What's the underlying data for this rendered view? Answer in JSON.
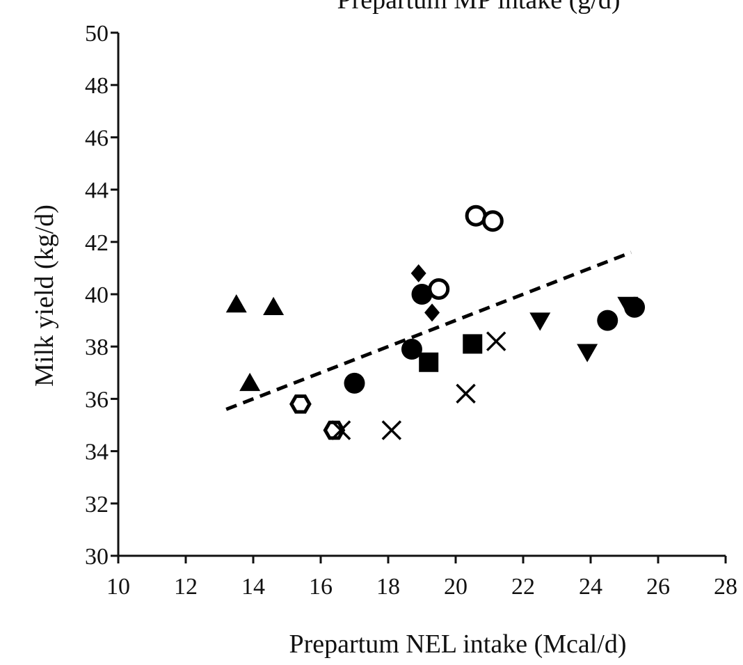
{
  "colors": {
    "marker": "#000000",
    "fill_open": "#ffffff",
    "axis": "#111111"
  },
  "chart_data": {
    "type": "scatter",
    "title": "Prepartum MP intake (g/d)",
    "xlabel": "Prepartum NEL intake (Mcal/d)",
    "ylabel": "Milk yield (kg/d)",
    "xlim": [
      10,
      28
    ],
    "ylim": [
      30,
      50
    ],
    "xticks": [
      10,
      12,
      14,
      16,
      18,
      20,
      22,
      24,
      26,
      28
    ],
    "yticks": [
      30,
      32,
      34,
      36,
      38,
      40,
      42,
      44,
      46,
      48,
      50
    ],
    "grid": false,
    "legend": "none",
    "series": [
      {
        "marker": "triangle-up",
        "points": [
          [
            13.5,
            39.6
          ],
          [
            14.6,
            39.5
          ],
          [
            13.9,
            36.6
          ]
        ]
      },
      {
        "marker": "hexagon-open",
        "points": [
          [
            15.4,
            35.8
          ],
          [
            16.4,
            34.8
          ]
        ]
      },
      {
        "marker": "circle-open",
        "points": [
          [
            19.5,
            40.2
          ],
          [
            20.6,
            43.0
          ],
          [
            21.1,
            42.8
          ]
        ]
      },
      {
        "marker": "circle-filled",
        "points": [
          [
            17.0,
            36.6
          ],
          [
            18.7,
            37.9
          ],
          [
            19.0,
            40.0
          ],
          [
            24.5,
            39.0
          ],
          [
            25.3,
            39.5
          ]
        ]
      },
      {
        "marker": "diamond",
        "points": [
          [
            18.9,
            40.8
          ],
          [
            19.3,
            39.3
          ]
        ]
      },
      {
        "marker": "square",
        "points": [
          [
            19.2,
            37.4
          ],
          [
            20.5,
            38.1
          ]
        ]
      },
      {
        "marker": "x",
        "points": [
          [
            16.6,
            34.8
          ],
          [
            18.1,
            34.8
          ],
          [
            20.3,
            36.2
          ],
          [
            21.2,
            38.2
          ]
        ]
      },
      {
        "marker": "triangle-down",
        "points": [
          [
            22.5,
            39.0
          ],
          [
            23.9,
            37.8
          ],
          [
            25.1,
            39.6
          ]
        ]
      }
    ],
    "trendline": {
      "style": "dashed",
      "from": [
        13.2,
        35.6
      ],
      "to": [
        25.2,
        41.6
      ]
    }
  }
}
